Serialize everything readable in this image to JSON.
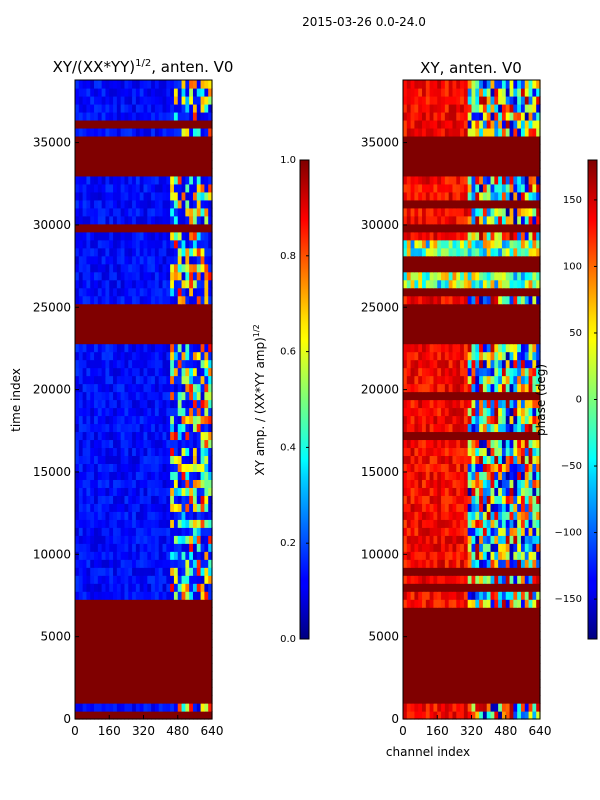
{
  "suptitle": "2015-03-26 0.0-24.0",
  "chart_data": [
    {
      "type": "heatmap",
      "title_main": "XY/(XX*YY)",
      "title_exp": "1/2",
      "title_tail": ", anten. V0",
      "xlabel": "",
      "ylabel": "time index",
      "xlim": [
        0,
        640
      ],
      "ylim": [
        0,
        38800
      ],
      "xticks": [
        "0",
        "160",
        "320",
        "480",
        "640"
      ],
      "xtick_values": [
        0,
        160,
        320,
        480,
        640
      ],
      "yticks": [
        "0",
        "5000",
        "10000",
        "15000",
        "20000",
        "25000",
        "30000",
        "35000"
      ],
      "ytick_values": [
        0,
        5000,
        10000,
        15000,
        20000,
        25000,
        30000,
        35000
      ],
      "colorbar": {
        "label_main": "XY amp. / (XX*YY amp)",
        "label_exp": "1/2",
        "range": [
          0.0,
          1.0
        ],
        "ticks": [
          "0.0",
          "0.2",
          "0.4",
          "0.6",
          "0.8",
          "1.0"
        ],
        "tick_values": [
          0.0,
          0.2,
          0.4,
          0.6,
          0.8,
          1.0
        ],
        "colormap": "jet"
      },
      "flagged_time_ranges": [
        [
          1100,
          6700
        ],
        [
          22800,
          25100
        ],
        [
          29500,
          30000
        ],
        [
          32800,
          35600
        ]
      ],
      "flagged_value": 1.0,
      "active_channel_range": [
        440,
        640
      ],
      "background_value": 0.13
    },
    {
      "type": "heatmap",
      "title": "XY, anten. V0",
      "xlabel": "channel index",
      "ylabel": "",
      "xlim": [
        0,
        640
      ],
      "ylim": [
        0,
        38800
      ],
      "xticks": [
        "0",
        "160",
        "320",
        "480",
        "640"
      ],
      "xtick_values": [
        0,
        160,
        320,
        480,
        640
      ],
      "yticks": [
        "0",
        "5000",
        "10000",
        "15000",
        "20000",
        "25000",
        "30000",
        "35000"
      ],
      "ytick_values": [
        0,
        5000,
        10000,
        15000,
        20000,
        25000,
        30000,
        35000
      ],
      "colorbar": {
        "label": "phase (deg)",
        "range": [
          -180,
          180
        ],
        "ticks": [
          "−150",
          "−100",
          "−50",
          "0",
          "50",
          "100",
          "150"
        ],
        "tick_values": [
          -150,
          -100,
          -50,
          0,
          50,
          100,
          150
        ],
        "colormap": "jet"
      },
      "flagged_time_ranges": [
        [
          1100,
          6700
        ],
        [
          22800,
          25100
        ],
        [
          29500,
          30000
        ],
        [
          32800,
          35600
        ]
      ],
      "flagged_value": 180
    }
  ]
}
